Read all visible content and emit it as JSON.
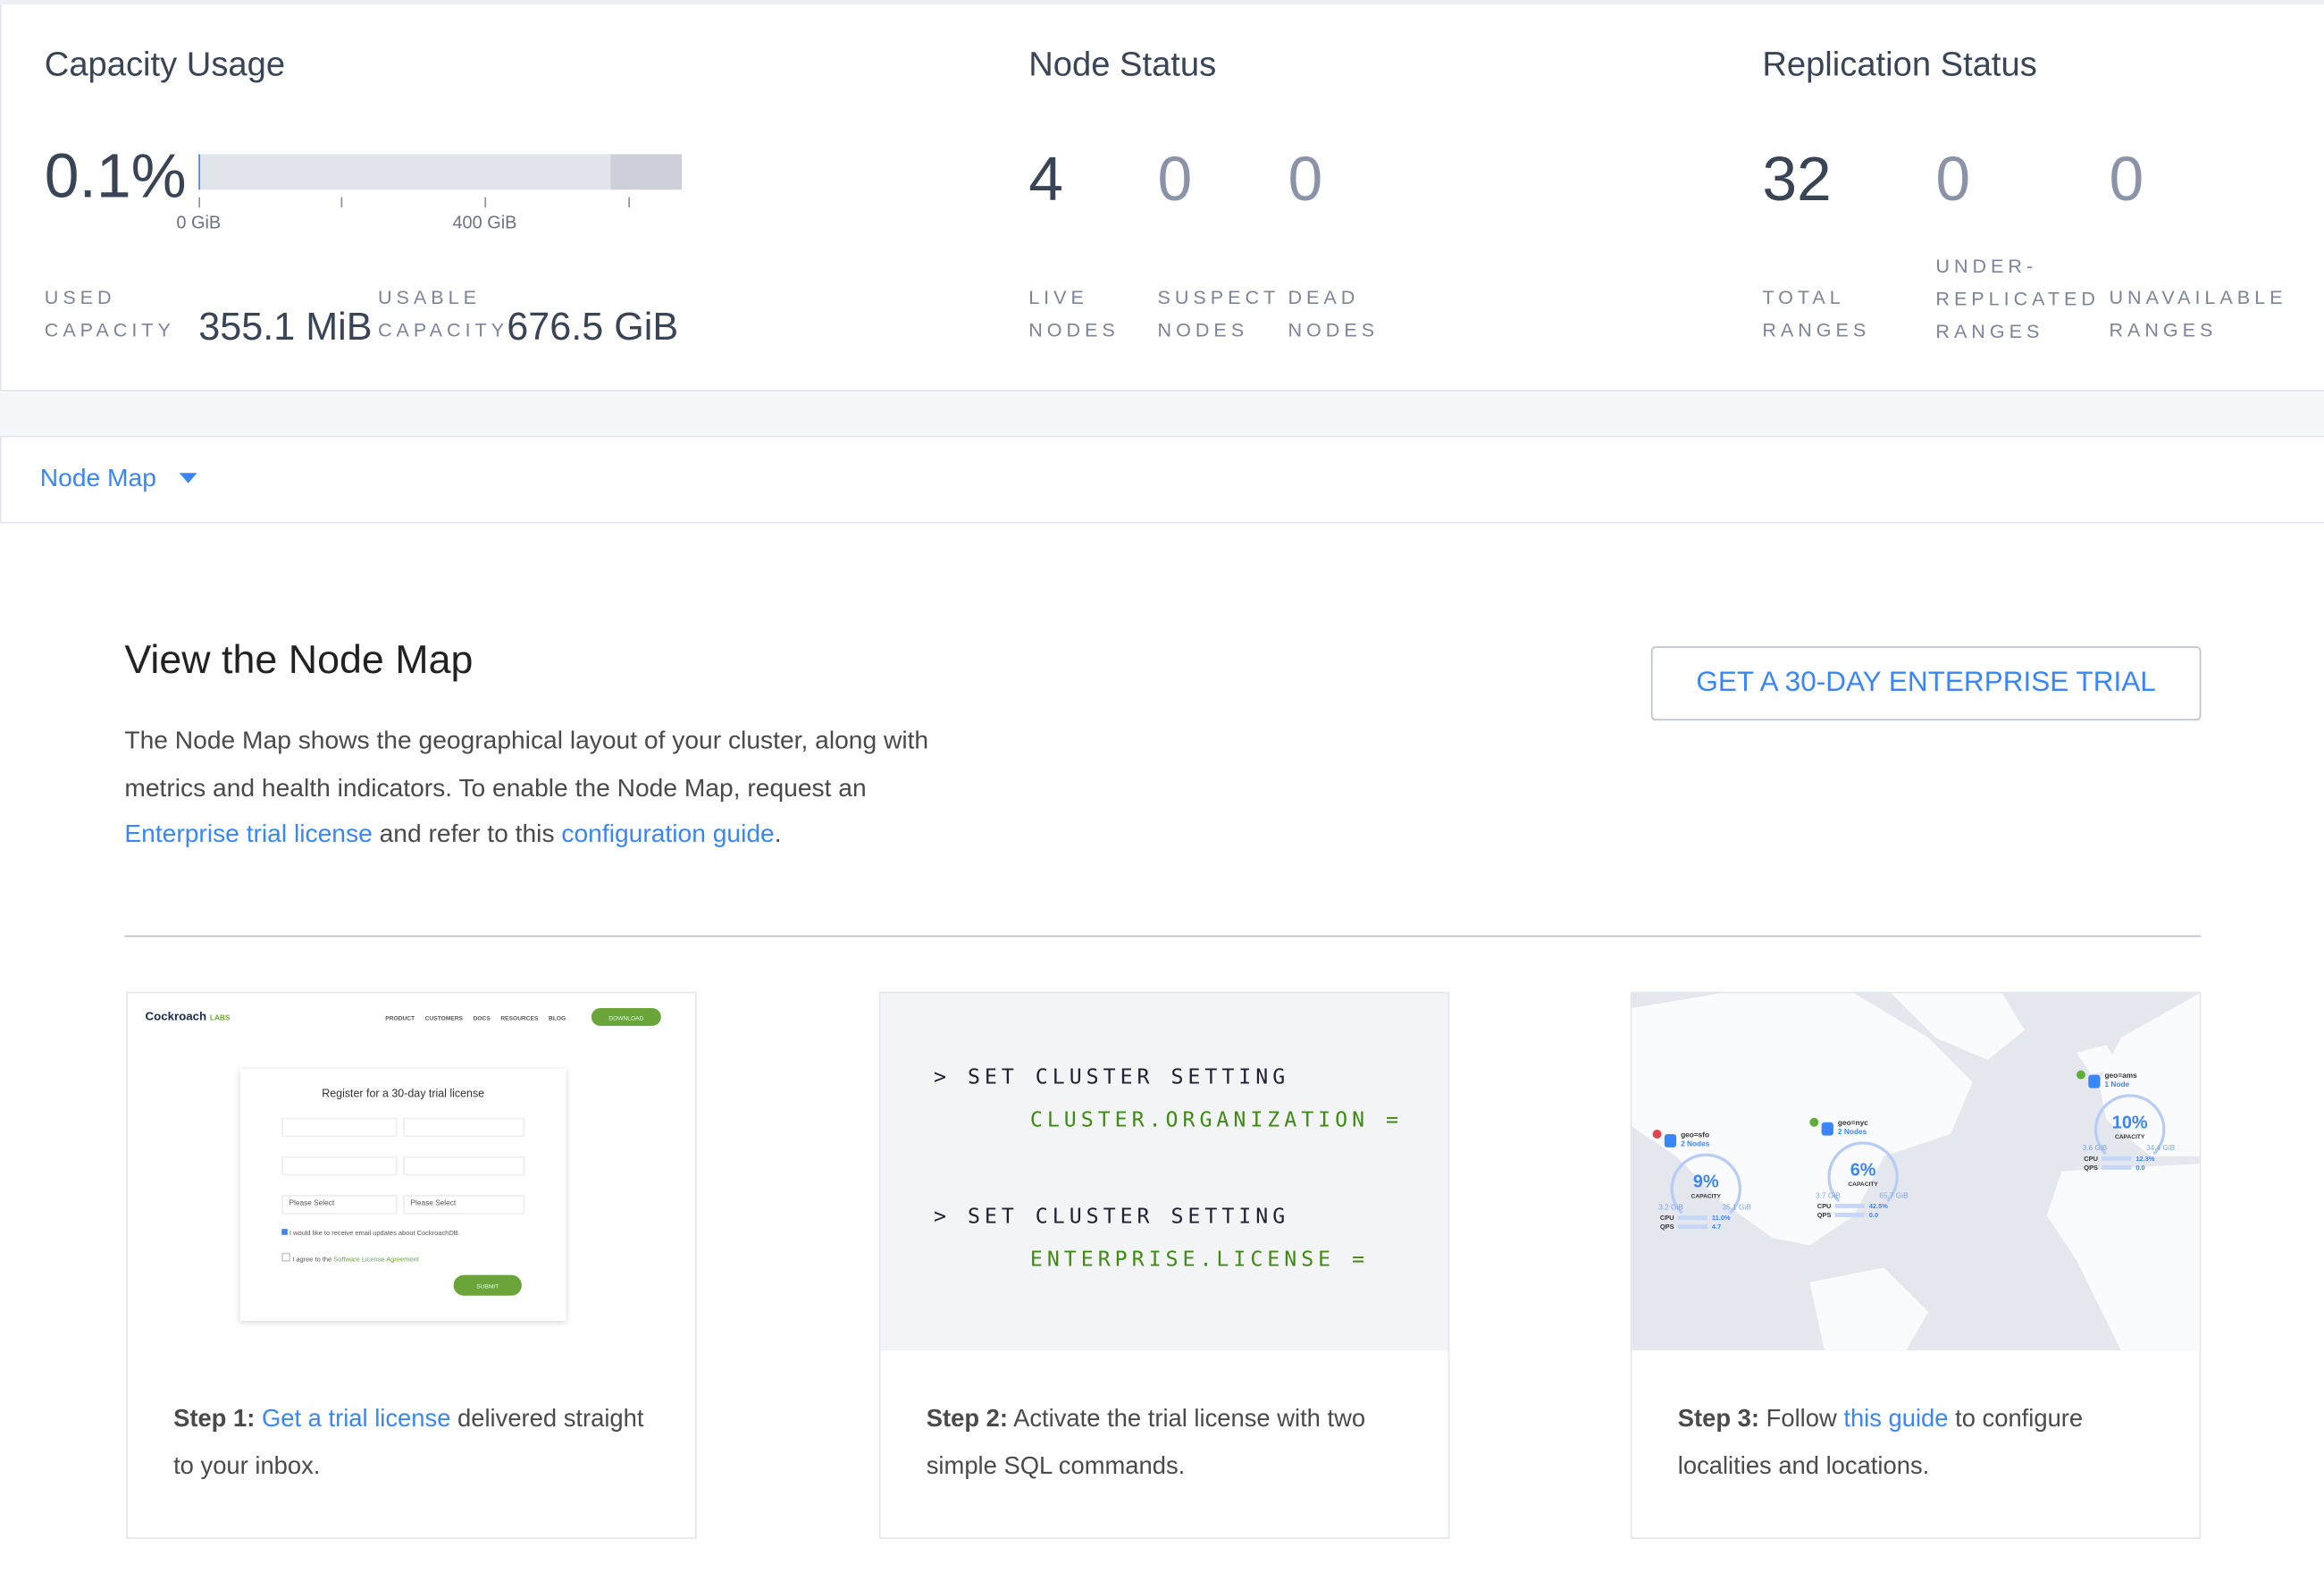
{
  "capacity": {
    "title": "Capacity Usage",
    "percent": "0.1%",
    "used_fraction": 0.001,
    "axis_labels": [
      "0 GiB",
      "400 GiB"
    ],
    "used_label_1": "USED",
    "used_label_2": "CAPACITY",
    "used_value": "355.1 MiB",
    "usable_label_1": "USABLE",
    "usable_label_2": "CAPACITY",
    "usable_value": "676.5 GiB"
  },
  "node_status": {
    "title": "Node Status",
    "stats": [
      {
        "value": "4",
        "label1": "LIVE",
        "label2": "NODES"
      },
      {
        "value": "0",
        "label1": "SUSPECT",
        "label2": "NODES"
      },
      {
        "value": "0",
        "label1": "DEAD",
        "label2": "NODES"
      }
    ]
  },
  "replication": {
    "title": "Replication Status",
    "stats": [
      {
        "value": "32",
        "label1": "TOTAL",
        "label2": "RANGES"
      },
      {
        "value": "0",
        "label0": "UNDER-",
        "label1": "REPLICATED",
        "label2": "RANGES"
      },
      {
        "value": "0",
        "label1": "UNAVAILABLE",
        "label2": "RANGES"
      }
    ]
  },
  "dropdown": {
    "label": "Node Map",
    "icon": "caret-down-icon"
  },
  "promo": {
    "title": "View the Node Map",
    "text1": "The Node Map shows the geographical layout of your cluster, along with metrics and health indicators. To enable the Node Map, request an ",
    "link1": "Enterprise trial license",
    "text2": " and refer to this ",
    "link2": "configuration guide",
    "text3": ".",
    "button": "GET A 30-DAY ENTERPRISE TRIAL"
  },
  "steps": [
    {
      "bold": "Step 1:",
      "link": "Get a trial license",
      "text": " delivered straight to your inbox."
    },
    {
      "bold": "Step 2:",
      "text": " Activate the trial license with two simple SQL commands."
    },
    {
      "bold": "Step 3:",
      "pre": " Follow ",
      "link": "this guide",
      "text": " to configure localities and locations."
    }
  ],
  "step1_image": {
    "logo": "Cockroach",
    "logo_suffix": "LABS",
    "nav": [
      "PRODUCT",
      "CUSTOMERS",
      "DOCS",
      "RESOURCES",
      "BLOG"
    ],
    "download": "DOWNLOAD",
    "form_title": "Register for a 30-day trial license",
    "select_placeholder": "Please Select",
    "check1": "I would like to receive email updates about CockroachDB.",
    "check2_pre": "I agree to the ",
    "check2_link": "Software License Agreement",
    "submit": "SUBMIT"
  },
  "step2_sql": [
    {
      "prompt": "> SET CLUSTER SETTING",
      "arg": "CLUSTER.ORGANIZATION ="
    },
    {
      "prompt": "> SET CLUSTER SETTING",
      "arg": "ENTERPRISE.LICENSE ="
    }
  ],
  "step3_map": {
    "localities": [
      {
        "name": "geo=sfo",
        "nodes": "2 Nodes",
        "pct": "9%",
        "cap": "CAPACITY",
        "used": "3.2 GiB",
        "total": "35.1 GiB",
        "cpu": "11.0%",
        "qps": "4.7",
        "status": "1",
        "status_color": "#e0474c"
      },
      {
        "name": "geo=nyc",
        "nodes": "2 Nodes",
        "pct": "6%",
        "cap": "CAPACITY",
        "used": "3.7 GiB",
        "total": "65.7 GiB",
        "cpu": "42.5%",
        "qps": "0.0",
        "status": "ok",
        "status_color": "#5fad3a"
      },
      {
        "name": "geo=ams",
        "nodes": "1 Node",
        "pct": "10%",
        "cap": "CAPACITY",
        "used": "3.6 GiB",
        "total": "34.4 GiB",
        "cpu": "12.3%",
        "qps": "0.0",
        "status": "ok",
        "status_color": "#5fad3a"
      }
    ],
    "cpu_label": "CPU",
    "qps_label": "QPS"
  },
  "colors": {
    "accent": "#3a86f7",
    "text": "#394455",
    "green": "#3e8a12"
  }
}
